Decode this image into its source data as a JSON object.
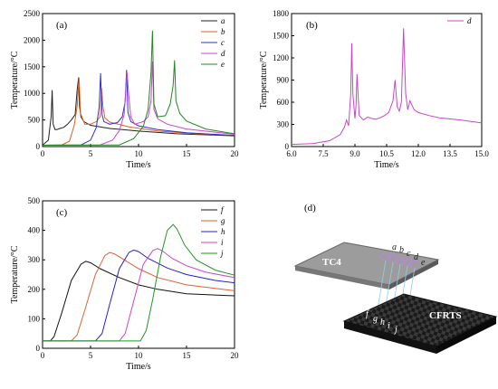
{
  "chart_data": [
    {
      "type": "line",
      "panel_label": "(a)",
      "xlabel": "Time/s",
      "ylabel": "Temperature/°C",
      "xlim": [
        0,
        20
      ],
      "ylim": [
        0,
        2500
      ],
      "xticks": [
        0,
        5,
        10,
        15,
        20
      ],
      "yticks": [
        0,
        500,
        1000,
        1500,
        2000,
        2500
      ],
      "legend_position": "top-right",
      "series": [
        {
          "name": "a",
          "color": "#222222",
          "x": [
            0,
            0.6,
            0.9,
            1.0,
            1.1,
            1.3,
            1.5,
            1.8,
            2.2,
            2.6,
            3.0,
            3.4,
            3.6,
            3.75,
            3.85,
            4.0,
            4.3,
            5,
            7,
            10,
            14,
            20
          ],
          "y": [
            25,
            120,
            560,
            1060,
            420,
            320,
            320,
            340,
            360,
            420,
            500,
            600,
            1060,
            1300,
            760,
            560,
            470,
            400,
            340,
            290,
            240,
            200
          ]
        },
        {
          "name": "b",
          "color": "#e06020",
          "x": [
            0,
            2,
            2.8,
            3.3,
            3.6,
            3.8,
            3.95,
            4.1,
            4.4,
            5.0,
            5.6,
            6.0,
            6.15,
            6.3,
            6.5,
            7,
            9,
            12,
            16,
            20
          ],
          "y": [
            25,
            30,
            100,
            400,
            760,
            1300,
            620,
            560,
            420,
            420,
            470,
            560,
            1100,
            740,
            540,
            460,
            370,
            290,
            240,
            210
          ]
        },
        {
          "name": "c",
          "color": "#3030cc",
          "x": [
            0,
            4,
            5,
            5.6,
            5.9,
            6.05,
            6.2,
            6.4,
            7.0,
            7.8,
            8.3,
            8.6,
            8.75,
            8.9,
            9.2,
            10,
            12,
            15,
            20
          ],
          "y": [
            25,
            30,
            120,
            360,
            740,
            1380,
            600,
            470,
            420,
            450,
            560,
            840,
            1440,
            640,
            470,
            390,
            320,
            260,
            210
          ]
        },
        {
          "name": "d",
          "color": "#cc44cc",
          "x": [
            0,
            6,
            7.3,
            8.0,
            8.5,
            8.8,
            9.0,
            9.2,
            9.6,
            10.5,
            11.0,
            11.3,
            11.45,
            11.6,
            12,
            13,
            15,
            20
          ],
          "y": [
            25,
            30,
            120,
            300,
            600,
            1400,
            920,
            560,
            420,
            470,
            560,
            860,
            1600,
            700,
            520,
            420,
            330,
            230
          ]
        },
        {
          "name": "e",
          "color": "#228822",
          "x": [
            0,
            8,
            9.5,
            10.5,
            11.0,
            11.3,
            11.45,
            11.6,
            12.0,
            12.8,
            13.3,
            13.6,
            13.75,
            13.9,
            14.3,
            15,
            17,
            20
          ],
          "y": [
            25,
            30,
            150,
            380,
            700,
            1400,
            2180,
            800,
            560,
            580,
            800,
            1150,
            1620,
            860,
            620,
            480,
            330,
            240
          ]
        }
      ]
    },
    {
      "type": "line",
      "panel_label": "(b)",
      "xlabel": "Time/s",
      "ylabel": "Temperature/°C",
      "xlim": [
        6,
        15
      ],
      "ylim": [
        0,
        1800
      ],
      "xticks": [
        "6.0",
        "7.5",
        "9.0",
        "10.5",
        "12.0",
        "13.5",
        "15.0"
      ],
      "yticks": [
        0,
        300,
        600,
        900,
        1200,
        1500,
        1800
      ],
      "legend_position": "top-right",
      "series": [
        {
          "name": "d",
          "color": "#cc44cc",
          "x": [
            6.0,
            7.0,
            7.8,
            8.3,
            8.5,
            8.6,
            8.7,
            8.8,
            8.85,
            8.9,
            9.0,
            9.05,
            9.1,
            9.2,
            9.4,
            9.6,
            9.8,
            10.0,
            10.2,
            10.4,
            10.6,
            10.8,
            10.9,
            11.0,
            11.1,
            11.2,
            11.3,
            11.4,
            11.5,
            11.6,
            11.8,
            12.0,
            12.5,
            13.0,
            14.0,
            15.0
          ],
          "y": [
            30,
            40,
            80,
            160,
            260,
            360,
            280,
            700,
            1400,
            720,
            380,
            560,
            980,
            420,
            360,
            400,
            380,
            370,
            390,
            420,
            460,
            620,
            900,
            540,
            480,
            600,
            1600,
            720,
            500,
            620,
            500,
            460,
            420,
            390,
            360,
            320
          ]
        }
      ]
    },
    {
      "type": "line",
      "panel_label": "(c)",
      "xlabel": "Time/s",
      "ylabel": "Temperature/°C",
      "xlim": [
        0,
        20
      ],
      "ylim": [
        0,
        500
      ],
      "xticks": [
        0,
        5,
        10,
        15,
        20
      ],
      "yticks": [
        0,
        100,
        200,
        300,
        400,
        500
      ],
      "legend_position": "top-right",
      "series": [
        {
          "name": "f",
          "color": "#111111",
          "x": [
            0,
            0.8,
            1.2,
            2,
            3,
            4,
            4.5,
            5,
            6,
            8,
            10,
            12,
            15,
            20
          ],
          "y": [
            25,
            25,
            40,
            120,
            230,
            285,
            295,
            290,
            270,
            240,
            215,
            200,
            185,
            178
          ]
        },
        {
          "name": "g",
          "color": "#e06030",
          "x": [
            0,
            3,
            3.6,
            4.5,
            5.5,
            6.5,
            7,
            7.5,
            8.5,
            10,
            12,
            15,
            20
          ],
          "y": [
            25,
            25,
            45,
            140,
            250,
            315,
            325,
            320,
            300,
            270,
            240,
            215,
            195
          ]
        },
        {
          "name": "h",
          "color": "#2222cc",
          "x": [
            0,
            5.5,
            6.2,
            7,
            8,
            9,
            9.5,
            10,
            11,
            13,
            15,
            18,
            20
          ],
          "y": [
            25,
            25,
            50,
            150,
            270,
            325,
            333,
            328,
            305,
            272,
            250,
            230,
            222
          ]
        },
        {
          "name": "i",
          "color": "#cc44cc",
          "x": [
            0,
            8,
            8.6,
            9.5,
            10.5,
            11.5,
            12,
            12.5,
            13.5,
            15,
            17,
            20
          ],
          "y": [
            25,
            25,
            50,
            160,
            285,
            332,
            338,
            330,
            305,
            280,
            258,
            240
          ]
        },
        {
          "name": "j",
          "color": "#229922",
          "x": [
            0,
            10.2,
            10.8,
            11.5,
            12.3,
            13.0,
            13.6,
            14.0,
            14.8,
            16,
            18,
            20
          ],
          "y": [
            25,
            25,
            60,
            170,
            310,
            400,
            420,
            405,
            350,
            300,
            265,
            248
          ]
        }
      ]
    }
  ],
  "diagram": {
    "panel_label": "(d)",
    "top_plate_label": "TC4",
    "bottom_plate_label": "CFRTS",
    "top_points": [
      "a",
      "b",
      "c",
      "d",
      "e"
    ],
    "bottom_points": [
      "f",
      "g",
      "h",
      "i",
      "j"
    ]
  }
}
